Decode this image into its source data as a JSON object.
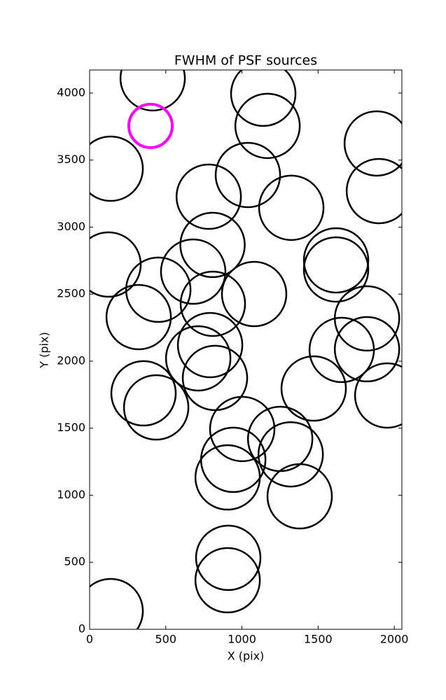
{
  "chart_data": {
    "type": "scatter",
    "title": "FWHM of PSF sources",
    "x_label": "X (pix)",
    "y_label": "Y (pix)",
    "xlim": [
      0,
      2050
    ],
    "ylim": [
      0,
      4172
    ],
    "xticks": [
      0,
      500,
      1000,
      1500,
      2000
    ],
    "yticks": [
      0,
      500,
      1000,
      1500,
      2000,
      2500,
      3000,
      3500,
      4000
    ],
    "grid": false,
    "series": [
      {
        "color": "#000000",
        "x": [
          414,
          1140,
          1168,
          138,
          1885,
          1039,
          1899,
          782,
          1324,
          807,
          124,
          1618,
          1618,
          680,
          451,
          1080,
          809,
          1821,
          322,
          1655,
          1821,
          791,
          713,
          823,
          1471,
          354,
          1954,
          437,
          1002,
          1251,
          1320,
          943,
          906,
          1379,
          910,
          906,
          138
        ],
        "values": [
          4110,
          3995,
          3755,
          3436,
          3624,
          3389,
          3269,
          3227,
          3144,
          2867,
          2721,
          2752,
          2684,
          2668,
          2533,
          2501,
          2428,
          2319,
          2329,
          2084,
          2089,
          2120,
          2021,
          1875,
          1796,
          1760,
          1744,
          1655,
          1494,
          1420,
          1305,
          1264,
          1133,
          992,
          533,
          366,
          136
        ]
      },
      {
        "color": "#ff00ff",
        "x": [
          400
        ],
        "values": [
          3755
        ]
      }
    ]
  }
}
